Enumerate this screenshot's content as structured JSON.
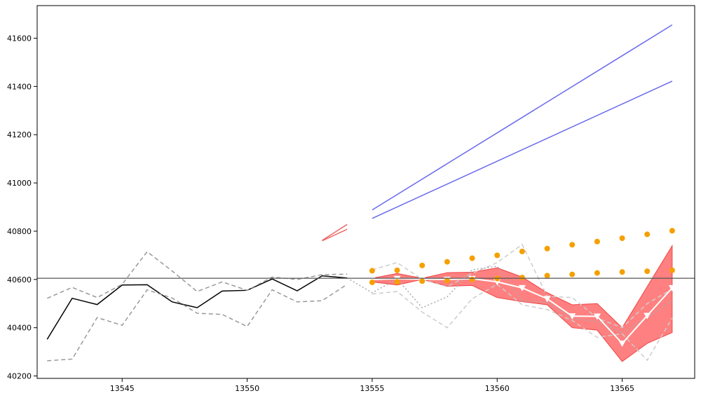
{
  "chart_data": {
    "type": "line",
    "title": "",
    "xlabel": "",
    "ylabel": "",
    "xlim": [
      13541.6,
      13567.9
    ],
    "ylim": [
      40190,
      41735
    ],
    "x_ticks": [
      13545,
      13550,
      13555,
      13560,
      13565
    ],
    "y_ticks": [
      40200,
      40400,
      40600,
      40800,
      41000,
      41200,
      41400,
      41600
    ],
    "grid": false,
    "legend": "none",
    "reference_line": {
      "y": 40605,
      "color": "#555555"
    },
    "band": {
      "color": "#ff6a6a",
      "x": [
        13555,
        13556,
        13557,
        13558,
        13559,
        13560,
        13561,
        13562,
        13563,
        13564,
        13565,
        13566,
        13567
      ],
      "upper": [
        40605,
        40625,
        40605,
        40628,
        40630,
        40648,
        40610,
        40545,
        40495,
        40500,
        40400,
        40570,
        40740
      ],
      "lower": [
        40590,
        40577,
        40600,
        40572,
        40575,
        40525,
        40508,
        40495,
        40400,
        40390,
        40260,
        40335,
        40380
      ]
    },
    "series": [
      {
        "style": "solid",
        "color": "#000000",
        "x": [
          13542,
          13543,
          13544,
          13545,
          13546,
          13547,
          13548,
          13549,
          13550,
          13551,
          13552,
          13553,
          13554
        ],
        "y": [
          40352,
          40522,
          40496,
          40577,
          40578,
          40507,
          40483,
          40552,
          40555,
          40602,
          40553,
          40615,
          40606
        ]
      },
      {
        "style": "dashed",
        "color": "#999999",
        "x": [
          13542,
          13543,
          13544,
          13545,
          13546,
          13547,
          13548,
          13549,
          13550,
          13551,
          13552,
          13553,
          13554
        ],
        "y": [
          40522,
          40567,
          40525,
          40580,
          40715,
          40635,
          40550,
          40590,
          40555,
          40610,
          40600,
          40620,
          40622
        ]
      },
      {
        "style": "dashed",
        "color": "#999999",
        "x": [
          13542,
          13543,
          13544,
          13545,
          13546,
          13547,
          13548,
          13549,
          13550,
          13551,
          13552,
          13553,
          13554
        ],
        "y": [
          40263,
          40270,
          40442,
          40410,
          40557,
          40523,
          40460,
          40455,
          40405,
          40557,
          40507,
          40512,
          40580
        ]
      },
      {
        "style": "dashed",
        "color": "#cccccc",
        "x": [
          13555,
          13556,
          13557,
          13558,
          13559,
          13560,
          13561,
          13562,
          13563,
          13564,
          13565,
          13566,
          13567
        ],
        "y": [
          40640,
          40670,
          40600,
          40570,
          40625,
          40670,
          40745,
          40530,
          40525,
          40440,
          40400,
          40500,
          40560
        ]
      },
      {
        "style": "dashed",
        "color": "#cccccc",
        "x": [
          13555,
          13556,
          13557,
          13558,
          13559,
          13560,
          13561,
          13562,
          13563,
          13564,
          13565,
          13566,
          13567
        ],
        "y": [
          40540,
          40550,
          40465,
          40400,
          40520,
          40580,
          40495,
          40475,
          40430,
          40360,
          40375,
          40265,
          40440
        ]
      },
      {
        "style": "dotted",
        "color": "#aaaaaa",
        "x": [
          13554,
          13555,
          13556,
          13557,
          13558,
          13559,
          13560,
          13561,
          13562,
          13563,
          13564,
          13565,
          13566,
          13567
        ],
        "y": [
          40606,
          40545,
          40602,
          40483,
          40528,
          40640,
          40655,
          40510,
          40505,
          40440,
          40425,
          40380,
          40442,
          40512
        ]
      },
      {
        "style": "solid",
        "color": "#6a6aee",
        "x": [
          13555,
          13567
        ],
        "y": [
          40888,
          41655
        ]
      },
      {
        "style": "solid",
        "color": "#6a6aee",
        "x": [
          13555,
          13567
        ],
        "y": [
          40853,
          41422
        ]
      },
      {
        "style": "solid",
        "color": "#ee6a6a",
        "x": [
          13553,
          13554
        ],
        "y": [
          40762,
          40828
        ]
      },
      {
        "style": "solid",
        "color": "#ee6a6a",
        "x": [
          13553,
          13554
        ],
        "y": [
          40760,
          40808
        ]
      },
      {
        "style": "solid-markers",
        "color": "#ffffff",
        "marker": "down-triangle",
        "x": [
          13555,
          13556,
          13557,
          13558,
          13559,
          13560,
          13561,
          13562,
          13563,
          13564,
          13565,
          13566,
          13567
        ],
        "y": [
          40600,
          40603,
          40601,
          40600,
          40603,
          40590,
          40565,
          40520,
          40448,
          40447,
          40335,
          40450,
          40565
        ]
      },
      {
        "style": "points",
        "color": "#f5a000",
        "x": [
          13555,
          13556,
          13557,
          13558,
          13559,
          13560,
          13561,
          13562,
          13563,
          13564,
          13565,
          13566,
          13567
        ],
        "y": [
          40636,
          40638,
          40658,
          40673,
          40688,
          40700,
          40716,
          40728,
          40744,
          40757,
          40771,
          40787,
          40802
        ]
      },
      {
        "style": "points",
        "color": "#f5a000",
        "x": [
          13555,
          13556,
          13557,
          13558,
          13559,
          13560,
          13561,
          13562,
          13563,
          13564,
          13565,
          13566,
          13567
        ],
        "y": [
          40588,
          40590,
          40593,
          40596,
          40600,
          40604,
          40608,
          40616,
          40621,
          40627,
          40631,
          40634,
          40638
        ]
      }
    ]
  }
}
